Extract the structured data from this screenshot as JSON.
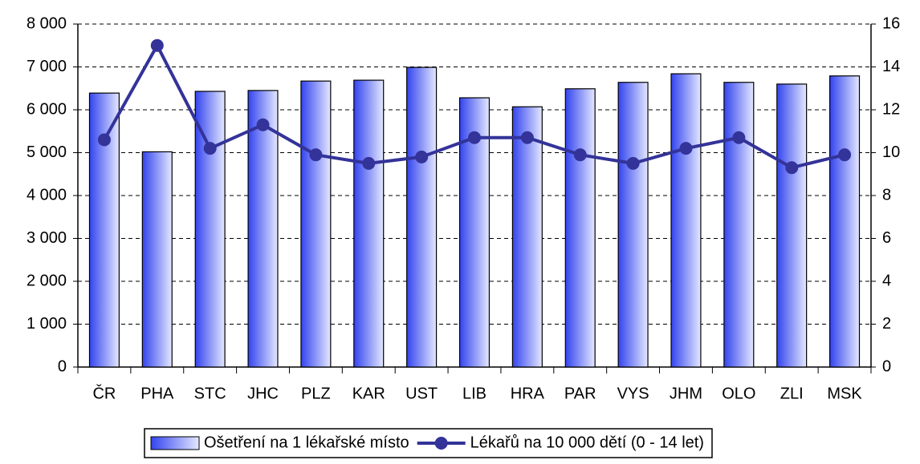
{
  "chart_data": {
    "type": "bar",
    "categories": [
      "ČR",
      "PHA",
      "STC",
      "JHC",
      "PLZ",
      "KAR",
      "UST",
      "LIB",
      "HRA",
      "PAR",
      "VYS",
      "JHM",
      "OLO",
      "ZLI",
      "MSK"
    ],
    "series": [
      {
        "name": "Ošetření na 1 lékařské místo",
        "type": "bar",
        "color": "#3344ee",
        "values": [
          6390,
          5020,
          6430,
          6450,
          6670,
          6690,
          6990,
          6280,
          6070,
          6490,
          6640,
          6840,
          6640,
          6600,
          6790
        ]
      },
      {
        "name": "Lékařů na 10 000 dětí (0 - 14 let)",
        "type": "line",
        "axis": "y2",
        "color": "#333399",
        "values": [
          10.6,
          15.0,
          10.2,
          11.3,
          9.9,
          9.5,
          9.8,
          10.7,
          10.7,
          9.9,
          9.5,
          10.2,
          10.7,
          9.3,
          9.9
        ]
      }
    ],
    "ylim": [
      0,
      8000
    ],
    "yticks": [
      0,
      {
        "value": 1000,
        "label": "1 000"
      },
      {
        "value": 2000,
        "label": "2 000"
      },
      {
        "value": 3000,
        "label": "3 000"
      },
      {
        "value": 4000,
        "label": "4 000"
      },
      {
        "value": 5000,
        "label": "5 000"
      },
      {
        "value": 6000,
        "label": "6 000"
      },
      {
        "value": 7000,
        "label": "7 000"
      },
      {
        "value": 8000,
        "label": "8 000"
      }
    ],
    "y2lim": [
      0,
      16
    ],
    "y2ticks": [
      0,
      2,
      4,
      6,
      8,
      10,
      12,
      14,
      16
    ],
    "grid": true,
    "legend": "bottom"
  }
}
